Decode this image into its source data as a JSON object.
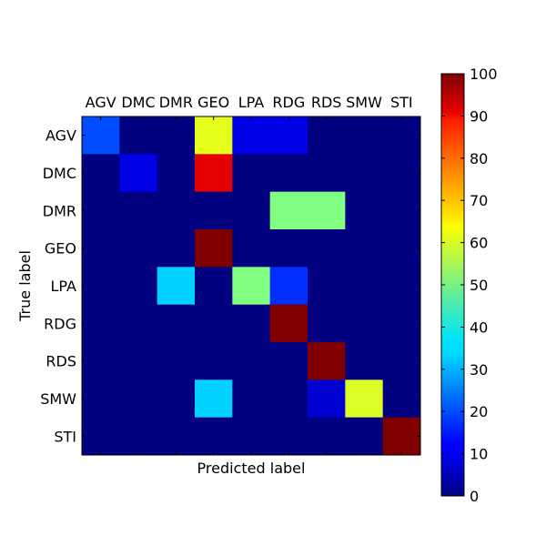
{
  "chart_data": {
    "type": "heatmap",
    "x_categories": [
      "AGV",
      "DMC",
      "DMR",
      "GEO",
      "LPA",
      "RDG",
      "RDS",
      "SMW",
      "STI"
    ],
    "y_categories": [
      "AGV",
      "DMC",
      "DMR",
      "GEO",
      "LPA",
      "RDG",
      "RDS",
      "SMW",
      "STI"
    ],
    "values": [
      [
        20,
        0,
        0,
        60,
        10,
        10,
        0,
        0,
        0
      ],
      [
        0,
        10,
        0,
        90,
        0,
        0,
        0,
        0,
        0
      ],
      [
        0,
        0,
        0,
        0,
        0,
        50,
        50,
        0,
        0
      ],
      [
        0,
        0,
        0,
        100,
        0,
        0,
        0,
        0,
        0
      ],
      [
        0,
        0,
        33,
        0,
        50,
        17,
        0,
        0,
        0
      ],
      [
        0,
        0,
        0,
        0,
        0,
        100,
        0,
        0,
        0
      ],
      [
        0,
        0,
        0,
        0,
        0,
        0,
        100,
        0,
        0
      ],
      [
        0,
        0,
        0,
        33,
        0,
        0,
        8,
        59,
        0
      ],
      [
        0,
        0,
        0,
        0,
        0,
        0,
        0,
        0,
        100
      ]
    ],
    "xlabel": "Predicted label",
    "ylabel": "True label",
    "title": "",
    "colormap": "jet",
    "colorbar": {
      "min": 0,
      "max": 100,
      "ticks": [
        0,
        10,
        20,
        30,
        40,
        50,
        60,
        70,
        80,
        90,
        100
      ]
    },
    "x_tick_position": "top",
    "grid": false,
    "legend": "colorbar-right"
  }
}
